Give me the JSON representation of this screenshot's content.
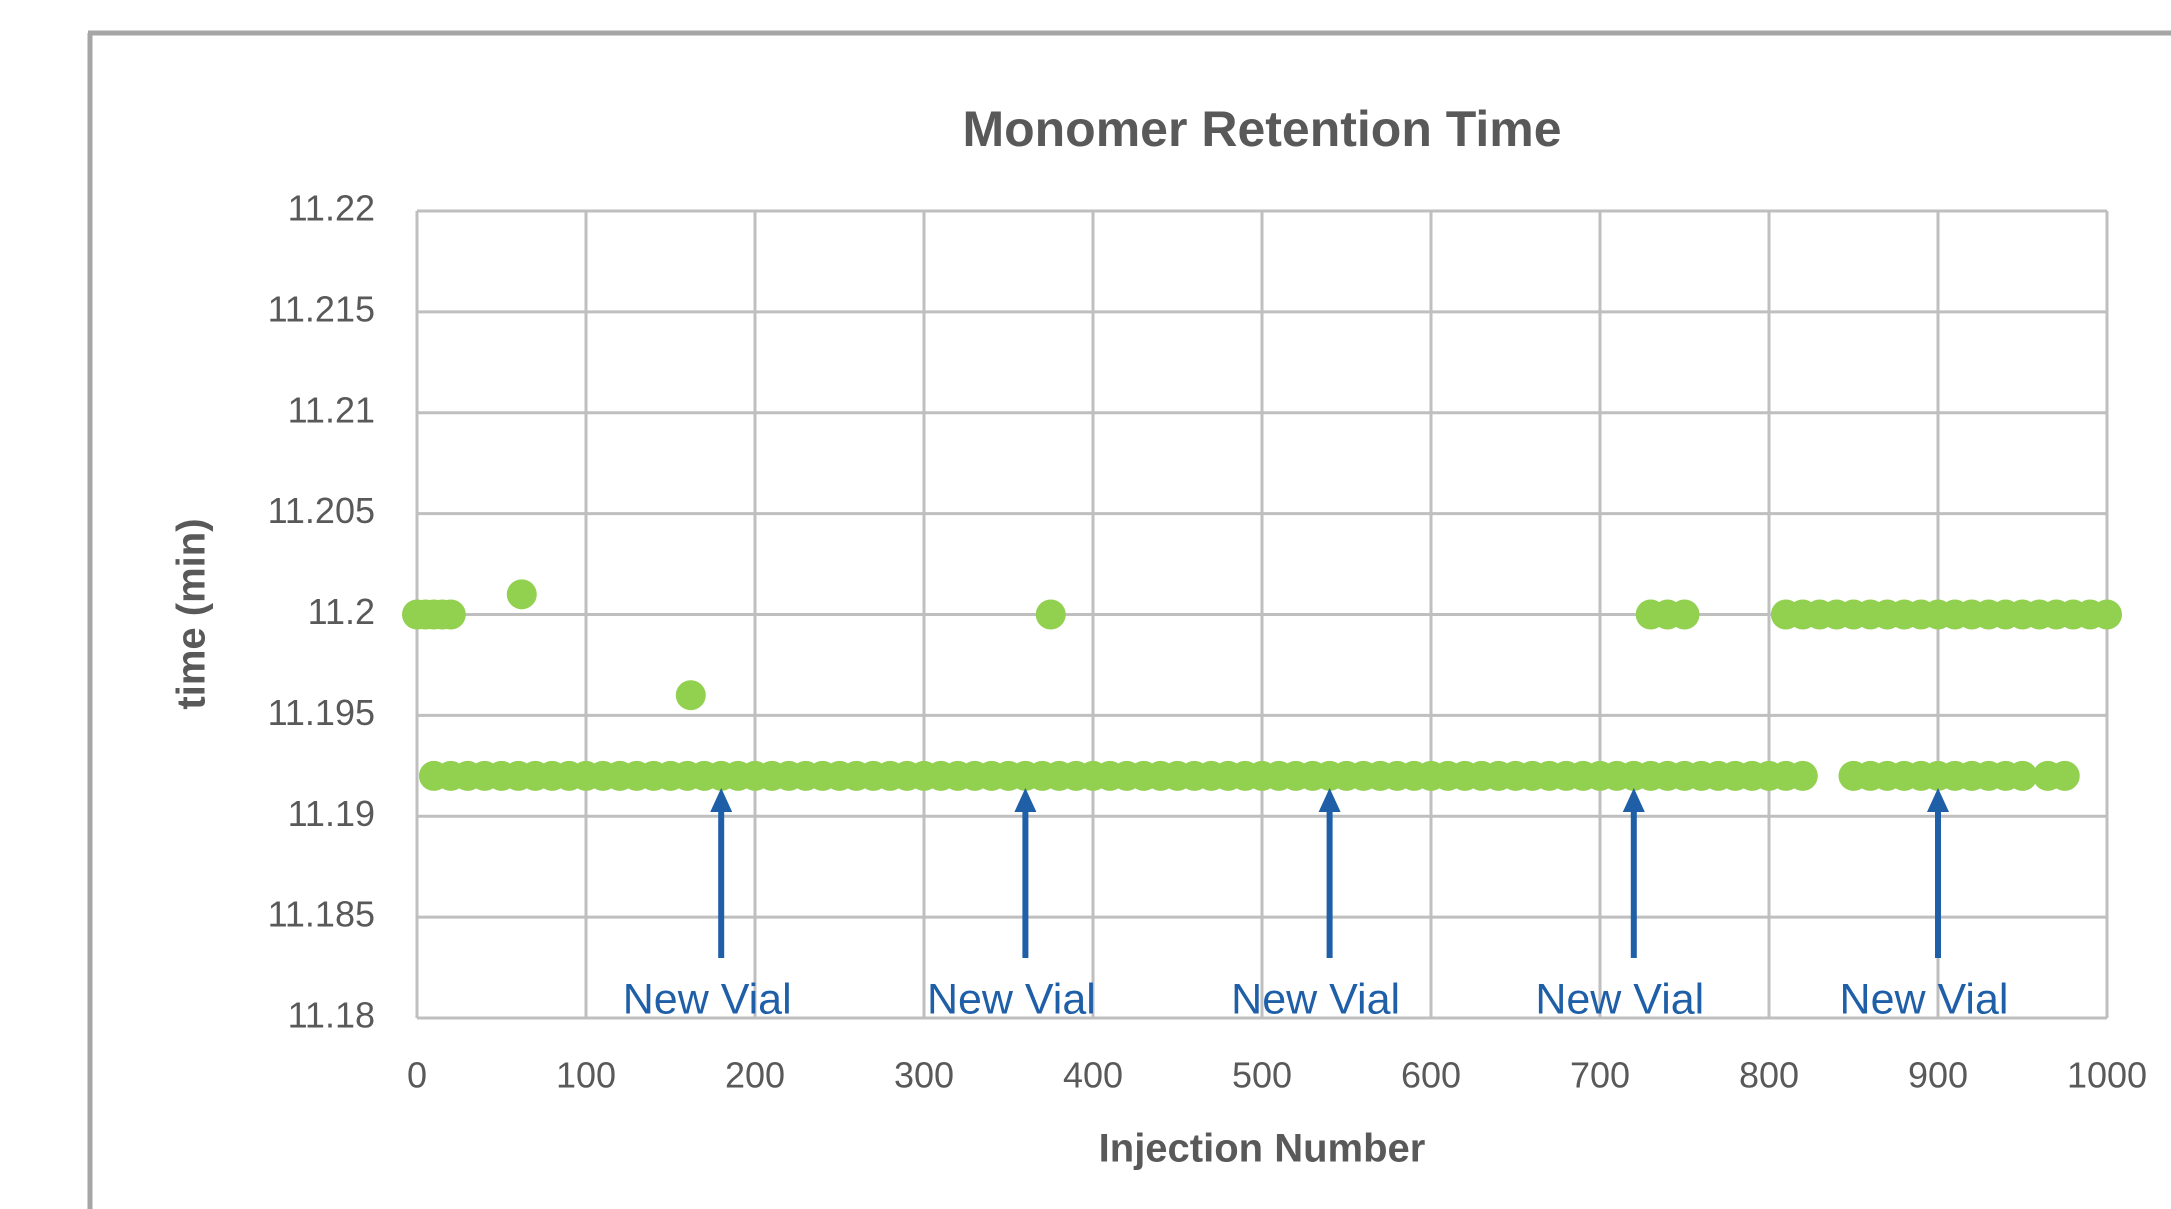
{
  "chart_data": {
    "type": "scatter",
    "title": "Monomer Retention Time",
    "xlabel": "Injection Number",
    "ylabel": "time (min)",
    "color": "#92d050",
    "x": [
      0,
      5,
      10,
      15,
      20,
      62,
      162,
      375,
      730,
      740,
      750,
      810,
      820,
      830,
      840,
      850,
      860,
      870,
      880,
      890,
      900,
      910,
      920,
      930,
      940,
      950,
      960,
      970,
      980,
      990,
      1000,
      10,
      20,
      30,
      40,
      50,
      60,
      70,
      80,
      90,
      100,
      110,
      120,
      130,
      140,
      150,
      160,
      170,
      180,
      190,
      200,
      210,
      220,
      230,
      240,
      250,
      260,
      270,
      280,
      290,
      300,
      310,
      320,
      330,
      340,
      350,
      360,
      370,
      380,
      390,
      400,
      410,
      420,
      430,
      440,
      450,
      460,
      470,
      480,
      490,
      500,
      510,
      520,
      530,
      540,
      550,
      560,
      570,
      580,
      590,
      600,
      610,
      620,
      630,
      640,
      650,
      660,
      670,
      680,
      690,
      700,
      710,
      720,
      730,
      740,
      750,
      760,
      770,
      780,
      790,
      800,
      810,
      820,
      850,
      860,
      870,
      880,
      890,
      900,
      910,
      920,
      930,
      940,
      950,
      965,
      975
    ],
    "values": [
      11.2,
      11.2,
      11.2,
      11.2,
      11.2,
      11.201,
      11.196,
      11.2,
      11.2,
      11.2,
      11.2,
      11.2,
      11.2,
      11.2,
      11.2,
      11.2,
      11.2,
      11.2,
      11.2,
      11.2,
      11.2,
      11.2,
      11.2,
      11.2,
      11.2,
      11.2,
      11.2,
      11.2,
      11.2,
      11.2,
      11.2,
      11.192,
      11.192,
      11.192,
      11.192,
      11.192,
      11.192,
      11.192,
      11.192,
      11.192,
      11.192,
      11.192,
      11.192,
      11.192,
      11.192,
      11.192,
      11.192,
      11.192,
      11.192,
      11.192,
      11.192,
      11.192,
      11.192,
      11.192,
      11.192,
      11.192,
      11.192,
      11.192,
      11.192,
      11.192,
      11.192,
      11.192,
      11.192,
      11.192,
      11.192,
      11.192,
      11.192,
      11.192,
      11.192,
      11.192,
      11.192,
      11.192,
      11.192,
      11.192,
      11.192,
      11.192,
      11.192,
      11.192,
      11.192,
      11.192,
      11.192,
      11.192,
      11.192,
      11.192,
      11.192,
      11.192,
      11.192,
      11.192,
      11.192,
      11.192,
      11.192,
      11.192,
      11.192,
      11.192,
      11.192,
      11.192,
      11.192,
      11.192,
      11.192,
      11.192,
      11.192,
      11.192,
      11.192,
      11.192,
      11.192,
      11.192,
      11.192,
      11.192,
      11.192,
      11.192,
      11.192,
      11.192,
      11.192,
      11.192,
      11.192,
      11.192,
      11.192,
      11.192,
      11.192,
      11.192,
      11.192,
      11.192,
      11.192,
      11.192,
      11.192,
      11.192
    ],
    "xlim": [
      0,
      1000
    ],
    "xticks": [
      0,
      100,
      200,
      300,
      400,
      500,
      600,
      700,
      800,
      900,
      1000
    ],
    "ylim": [
      11.18,
      11.22
    ],
    "yticks": [
      11.18,
      11.185,
      11.19,
      11.195,
      11.2,
      11.205,
      11.21,
      11.215,
      11.22
    ],
    "grid": true,
    "annotations": [
      {
        "text": "New Vial",
        "x": 180
      },
      {
        "text": "New Vial",
        "x": 360
      },
      {
        "text": "New Vial",
        "x": 540
      },
      {
        "text": "New Vial",
        "x": 720
      },
      {
        "text": "New Vial",
        "x": 900
      }
    ],
    "annotation_color": "#1f5fa8"
  }
}
